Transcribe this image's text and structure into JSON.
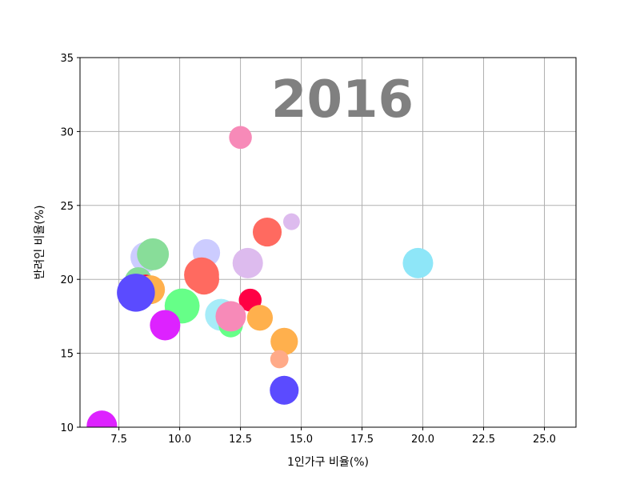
{
  "chart_data": {
    "type": "scatter",
    "title": "2016",
    "xlabel": "1인가구 비율(%)",
    "ylabel": "반려인 비율(%)",
    "xlim": [
      5.9,
      26.3
    ],
    "ylim": [
      10,
      35
    ],
    "xticks": [
      "7.5",
      "10.0",
      "12.5",
      "15.0",
      "17.5",
      "20.0",
      "22.5",
      "25.0"
    ],
    "xtick_values": [
      7.5,
      10.0,
      12.5,
      15.0,
      17.5,
      20.0,
      22.5,
      25.0
    ],
    "yticks": [
      "10",
      "15",
      "20",
      "25",
      "30",
      "35"
    ],
    "ytick_values": [
      10,
      15,
      20,
      25,
      30,
      35
    ],
    "grid": true,
    "points": [
      {
        "x": 19.8,
        "y": 21.1,
        "color": "#8ee6f8",
        "size": 1.0
      },
      {
        "x": 12.5,
        "y": 29.6,
        "color": "#f78ab8",
        "size": 0.75
      },
      {
        "x": 14.6,
        "y": 23.9,
        "color": "#ddbbee",
        "size": 0.55
      },
      {
        "x": 13.6,
        "y": 23.2,
        "color": "#ff6a60",
        "size": 0.95
      },
      {
        "x": 12.8,
        "y": 21.1,
        "color": "#ddbbee",
        "size": 1.0
      },
      {
        "x": 11.1,
        "y": 21.8,
        "color": "#ccccff",
        "size": 0.9
      },
      {
        "x": 8.6,
        "y": 21.5,
        "color": "#ccccff",
        "size": 1.0
      },
      {
        "x": 8.9,
        "y": 21.7,
        "color": "#88dd99",
        "size": 1.05
      },
      {
        "x": 8.3,
        "y": 19.9,
        "color": "#88dd99",
        "size": 0.9
      },
      {
        "x": 8.6,
        "y": 19.6,
        "color": "#ff0044",
        "size": 0.7
      },
      {
        "x": 8.8,
        "y": 19.3,
        "color": "#ffb04d",
        "size": 0.95
      },
      {
        "x": 10.9,
        "y": 20.3,
        "color": "#ff6a60",
        "size": 1.15
      },
      {
        "x": 11.0,
        "y": 20.0,
        "color": "#ff6a60",
        "size": 1.0
      },
      {
        "x": 10.1,
        "y": 18.2,
        "color": "#66ff88",
        "size": 1.15
      },
      {
        "x": 12.9,
        "y": 18.6,
        "color": "#ff0044",
        "size": 0.75
      },
      {
        "x": 11.7,
        "y": 17.6,
        "color": "#a6ecf8",
        "size": 1.05
      },
      {
        "x": 12.1,
        "y": 16.9,
        "color": "#66ff88",
        "size": 0.8
      },
      {
        "x": 12.1,
        "y": 17.5,
        "color": "#f78ab8",
        "size": 1.0
      },
      {
        "x": 13.3,
        "y": 17.4,
        "color": "#ffb04d",
        "size": 0.85
      },
      {
        "x": 9.4,
        "y": 16.9,
        "color": "#dd22ff",
        "size": 1.0
      },
      {
        "x": 8.2,
        "y": 19.1,
        "color": "#5b4bff",
        "size": 1.25
      },
      {
        "x": 14.3,
        "y": 15.8,
        "color": "#ffb04d",
        "size": 0.9
      },
      {
        "x": 14.1,
        "y": 14.6,
        "color": "#ffaa88",
        "size": 0.6
      },
      {
        "x": 14.3,
        "y": 12.5,
        "color": "#5b4bff",
        "size": 0.95
      },
      {
        "x": 6.8,
        "y": 10.1,
        "color": "#dd22ff",
        "size": 1.0
      }
    ]
  }
}
